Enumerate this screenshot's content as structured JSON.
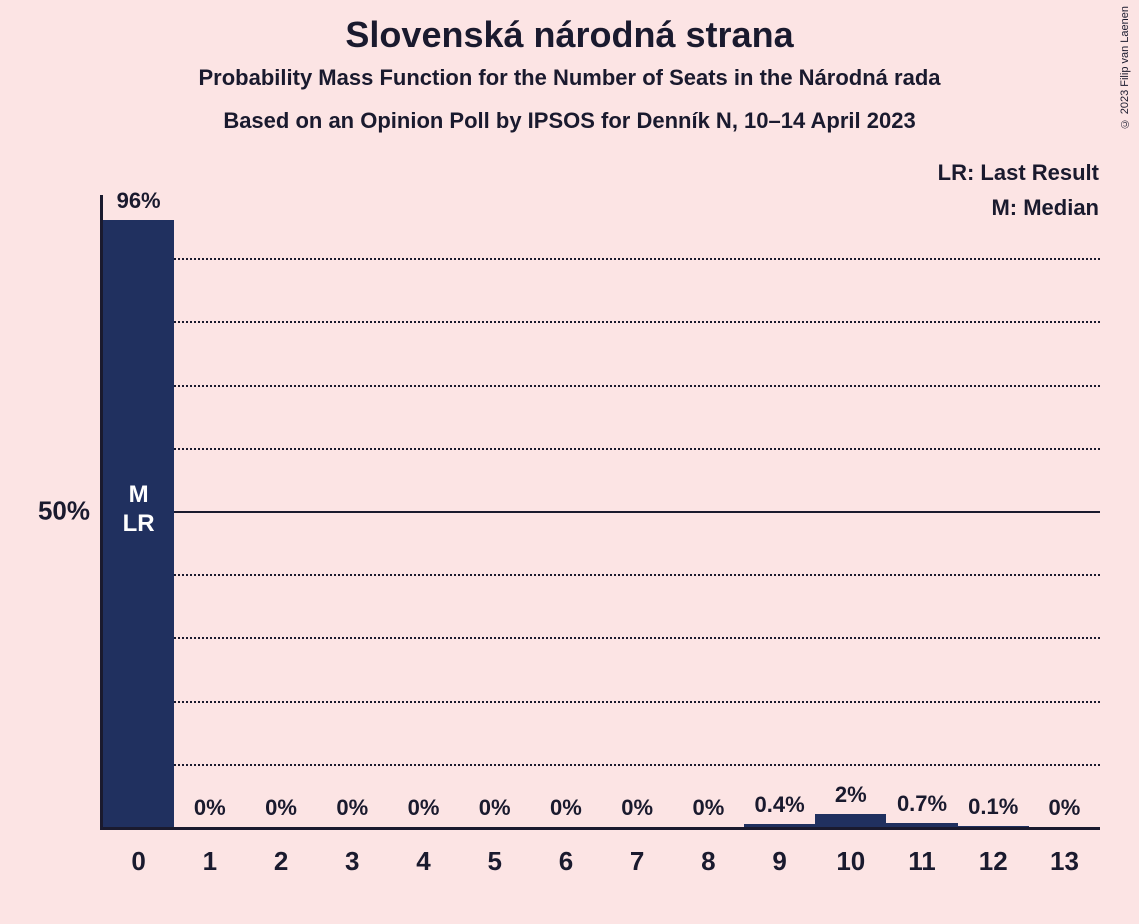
{
  "title": "Slovenská národná strana",
  "subtitle1": "Probability Mass Function for the Number of Seats in the Národná rada",
  "subtitle2": "Based on an Opinion Poll by IPSOS for Denník N, 10–14 April 2023",
  "copyright": "© 2023 Filip van Laenen",
  "legend": {
    "lr": "LR: Last Result",
    "m": "M: Median"
  },
  "chart": {
    "type": "bar",
    "bar_color": "#20305f",
    "background_color": "#fce4e4",
    "text_color": "#1a1a2e",
    "annotation_color": "#ffffff",
    "y_axis": {
      "max": 100,
      "gridlines": [
        10,
        20,
        30,
        40,
        50,
        60,
        70,
        80,
        90
      ],
      "solid_gridline": 50,
      "labels": [
        {
          "value": 50,
          "text": "50%"
        }
      ]
    },
    "x_categories": [
      "0",
      "1",
      "2",
      "3",
      "4",
      "5",
      "6",
      "7",
      "8",
      "9",
      "10",
      "11",
      "12",
      "13"
    ],
    "values": [
      96,
      0,
      0,
      0,
      0,
      0,
      0,
      0,
      0,
      0.4,
      2,
      0.7,
      0.1,
      0
    ],
    "value_labels": [
      "96%",
      "0%",
      "0%",
      "0%",
      "0%",
      "0%",
      "0%",
      "0%",
      "0%",
      "0.4%",
      "2%",
      "0.7%",
      "0.1%",
      "0%"
    ],
    "annotations": [
      {
        "bar_index": 0,
        "lines": [
          "M",
          "LR"
        ],
        "position_pct": 50
      }
    ]
  }
}
